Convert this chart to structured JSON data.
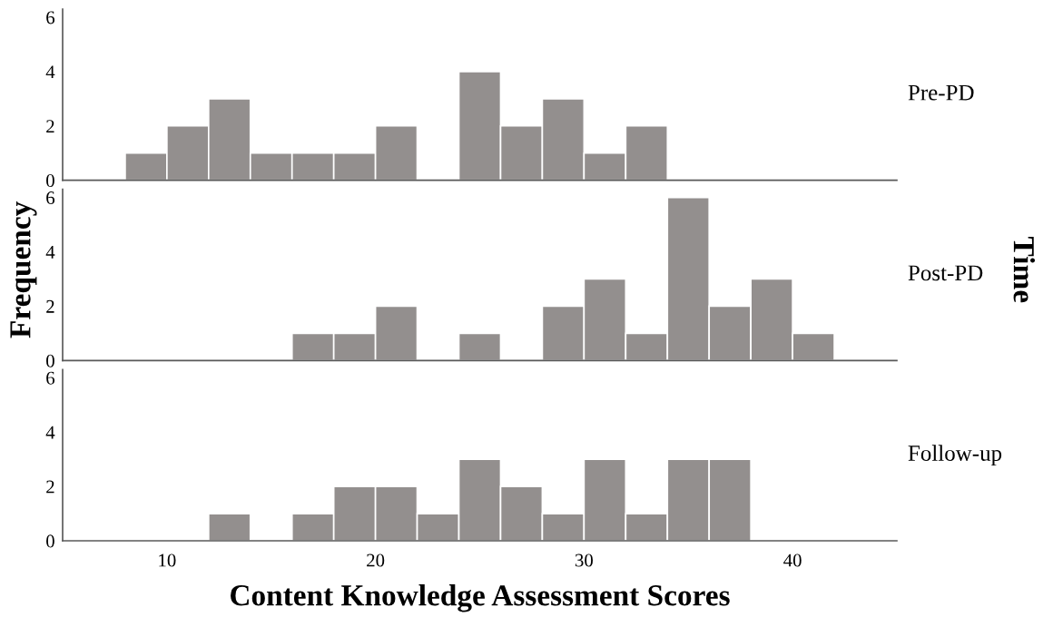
{
  "chart_data": [
    {
      "type": "histogram",
      "bins": [
        8,
        10,
        12,
        14,
        16,
        18,
        20,
        22,
        24,
        26,
        28,
        30,
        32,
        34
      ],
      "series": [
        {
          "name": "Pre-PD",
          "color": "#938f8e",
          "values": [
            1,
            2,
            3,
            1,
            1,
            1,
            2,
            0,
            4,
            2,
            3,
            1,
            2
          ]
        }
      ],
      "xlim": [
        5,
        45
      ],
      "xticks": [
        10,
        20,
        30,
        40
      ],
      "ylim": [
        0,
        6.3
      ],
      "yticks": [
        0,
        2,
        4,
        6
      ],
      "tick_labels": "y"
    },
    {
      "type": "histogram",
      "ylabel": "Frequency",
      "annotations": [
        "Time"
      ],
      "bins": [
        16,
        18,
        20,
        22,
        24,
        26,
        28,
        30,
        32,
        34,
        36,
        38,
        40,
        42
      ],
      "series": [
        {
          "name": "Post-PD",
          "color": "#938f8e",
          "values": [
            1,
            1,
            2,
            0,
            1,
            0,
            2,
            3,
            1,
            6,
            2,
            3,
            1
          ]
        }
      ],
      "xlim": [
        5,
        45
      ],
      "xticks": [
        10,
        20,
        30,
        40
      ],
      "ylim": [
        0,
        6.3
      ],
      "yticks": [
        0,
        2,
        4,
        6
      ],
      "tick_labels": "y"
    },
    {
      "type": "histogram",
      "xlabel": "Content Knowledge Assessment Scores",
      "bins": [
        12,
        14,
        16,
        18,
        20,
        22,
        24,
        26,
        28,
        30,
        32,
        34,
        36,
        38
      ],
      "series": [
        {
          "name": "Follow-up",
          "color": "#938f8e",
          "values": [
            1,
            0,
            1,
            2,
            2,
            1,
            3,
            2,
            1,
            3,
            1,
            3,
            3
          ]
        }
      ],
      "xlim": [
        5,
        45
      ],
      "xticks": [
        10,
        20,
        30,
        40
      ],
      "ylim": [
        0,
        6.3
      ],
      "yticks": [
        0,
        2,
        4,
        6
      ]
    }
  ]
}
